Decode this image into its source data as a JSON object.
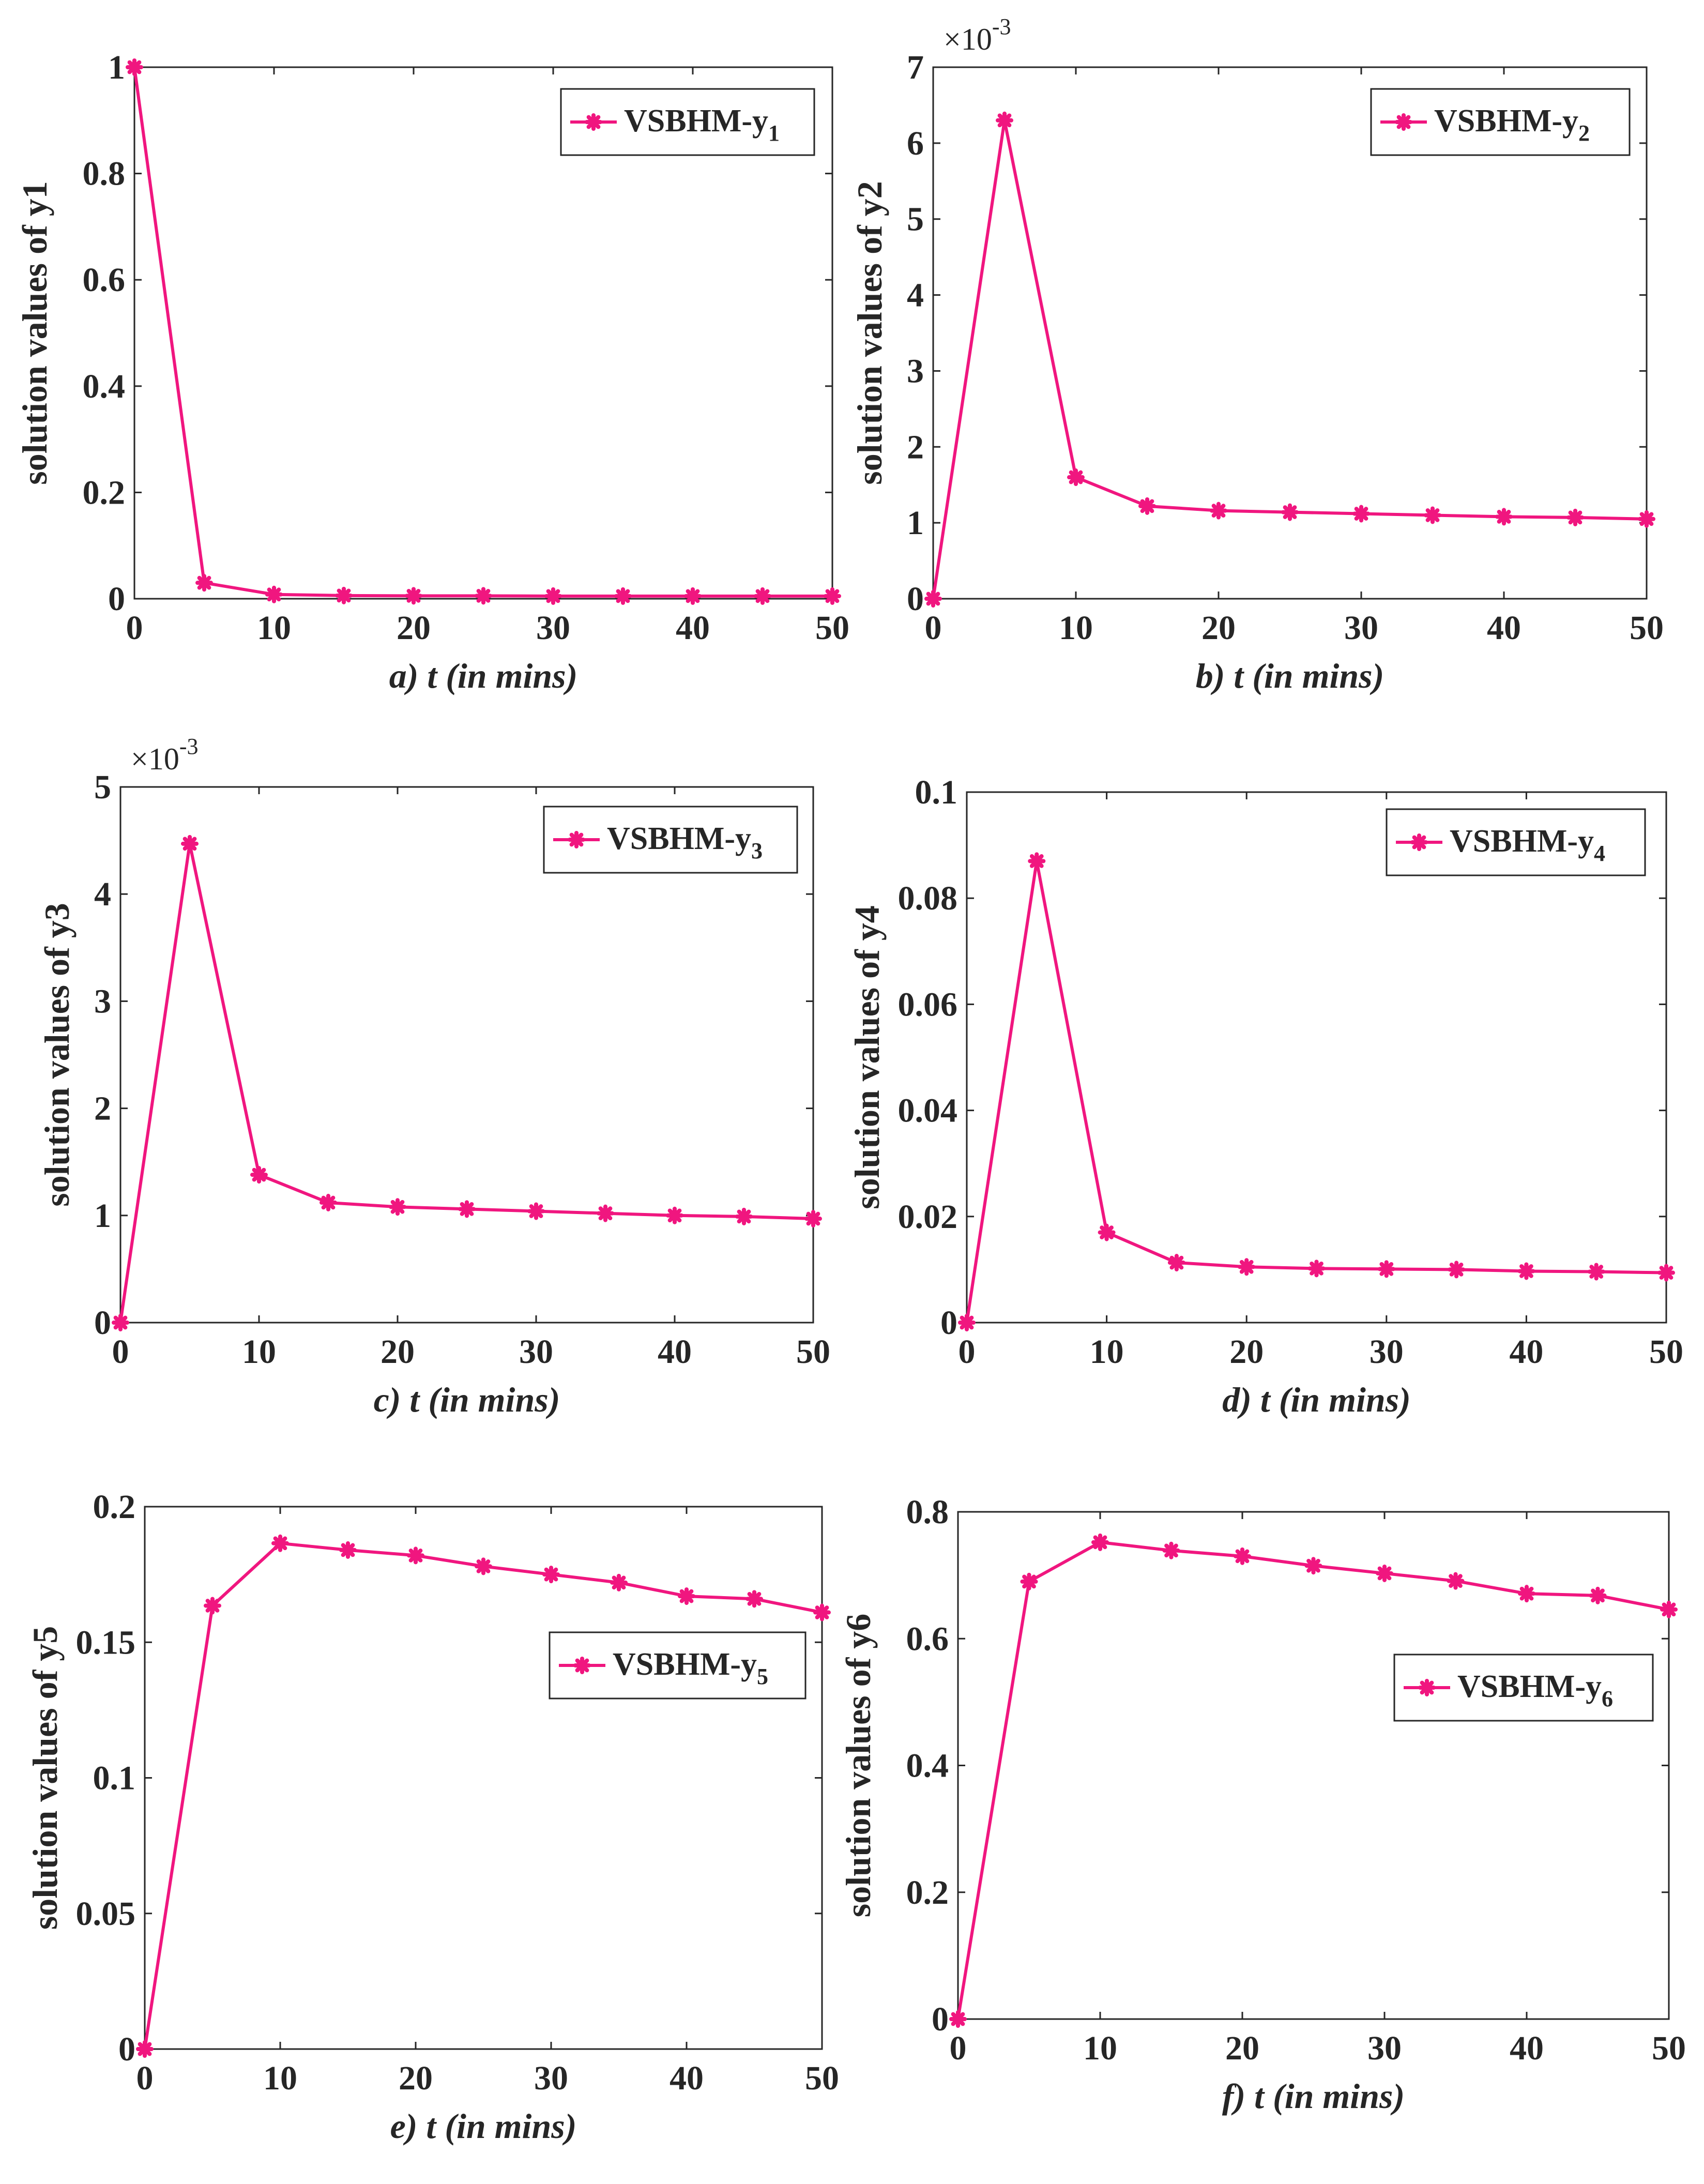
{
  "figure": {
    "series_color": "#f0167f",
    "axis_color": "#262626"
  },
  "chart_data": [
    {
      "type": "line",
      "panel": "a",
      "xlabel": "a) t (in mins)",
      "ylabel": "solution values of y1",
      "x": [
        0,
        5,
        10,
        15,
        20,
        25,
        30,
        35,
        40,
        45,
        50
      ],
      "series": [
        {
          "name": "VSBHM-y1",
          "legend_base": "VSBHM-y",
          "legend_sub": "1",
          "values": [
            1.0,
            0.03,
            0.008,
            0.006,
            0.0055,
            0.0055,
            0.005,
            0.005,
            0.005,
            0.005,
            0.005
          ]
        }
      ],
      "xlim": [
        0,
        50
      ],
      "ylim": [
        0,
        1
      ],
      "xticks": [
        0,
        10,
        20,
        30,
        40,
        50
      ],
      "yticks": [
        0,
        0.2,
        0.4,
        0.6,
        0.8,
        1
      ],
      "ytick_labels": [
        "0",
        "0.2",
        "0.4",
        "0.6",
        "0.8",
        "1"
      ],
      "exponent": null,
      "legend_position": "top-right"
    },
    {
      "type": "line",
      "panel": "b",
      "xlabel": "b) t (in mins)",
      "ylabel": "solution values of y2",
      "x": [
        0,
        5,
        10,
        15,
        20,
        25,
        30,
        35,
        40,
        45,
        50
      ],
      "series": [
        {
          "name": "VSBHM-y2",
          "legend_base": "VSBHM-y",
          "legend_sub": "2",
          "values": [
            0.0,
            0.0063,
            0.0016,
            0.00122,
            0.00116,
            0.00114,
            0.00112,
            0.0011,
            0.00108,
            0.00107,
            0.00105
          ]
        }
      ],
      "xlim": [
        0,
        50
      ],
      "ylim": [
        0,
        0.007
      ],
      "xticks": [
        0,
        10,
        20,
        30,
        40,
        50
      ],
      "yticks": [
        0,
        0.001,
        0.002,
        0.003,
        0.004,
        0.005,
        0.006,
        0.007
      ],
      "ytick_labels": [
        "0",
        "1",
        "2",
        "3",
        "4",
        "5",
        "6",
        "7"
      ],
      "exponent": {
        "base": "×10",
        "power": "-3"
      },
      "legend_position": "top-right"
    },
    {
      "type": "line",
      "panel": "c",
      "xlabel": "c) t (in mins)",
      "ylabel": "solution values of y3",
      "x": [
        0,
        5,
        10,
        15,
        20,
        25,
        30,
        35,
        40,
        45,
        50
      ],
      "series": [
        {
          "name": "VSBHM-y3",
          "legend_base": "VSBHM-y",
          "legend_sub": "3",
          "values": [
            0.0,
            0.00447,
            0.00138,
            0.00112,
            0.00108,
            0.00106,
            0.00104,
            0.00102,
            0.001,
            0.00099,
            0.00097
          ]
        }
      ],
      "xlim": [
        0,
        50
      ],
      "ylim": [
        0,
        0.005
      ],
      "xticks": [
        0,
        10,
        20,
        30,
        40,
        50
      ],
      "yticks": [
        0,
        0.001,
        0.002,
        0.003,
        0.004,
        0.005
      ],
      "ytick_labels": [
        "0",
        "1",
        "2",
        "3",
        "4",
        "5"
      ],
      "exponent": {
        "base": "×10",
        "power": "-3"
      },
      "legend_position": "top-right"
    },
    {
      "type": "line",
      "panel": "d",
      "xlabel": "d) t (in mins)",
      "ylabel": "solution values of y4",
      "x": [
        0,
        5,
        10,
        15,
        20,
        25,
        30,
        35,
        40,
        45,
        50
      ],
      "series": [
        {
          "name": "VSBHM-y4",
          "legend_base": "VSBHM-y",
          "legend_sub": "4",
          "values": [
            0.0,
            0.087,
            0.017,
            0.0113,
            0.0105,
            0.0102,
            0.0101,
            0.01,
            0.0097,
            0.0096,
            0.0094
          ]
        }
      ],
      "xlim": [
        0,
        50
      ],
      "ylim": [
        0,
        0.1
      ],
      "xticks": [
        0,
        10,
        20,
        30,
        40,
        50
      ],
      "yticks": [
        0,
        0.02,
        0.04,
        0.06,
        0.08,
        0.1
      ],
      "ytick_labels": [
        "0",
        "0.02",
        "0.04",
        "0.06",
        "0.08",
        "0.1"
      ],
      "exponent": null,
      "legend_position": "top-right"
    },
    {
      "type": "line",
      "panel": "e",
      "xlabel": "e) t (in mins)",
      "ylabel": "solution values of y5",
      "x": [
        0,
        5,
        10,
        15,
        20,
        25,
        30,
        35,
        40,
        45,
        50
      ],
      "series": [
        {
          "name": "VSBHM-y5",
          "legend_base": "VSBHM-y",
          "legend_sub": "5",
          "values": [
            0.0,
            0.1635,
            0.1865,
            0.184,
            0.182,
            0.178,
            0.175,
            0.172,
            0.167,
            0.166,
            0.161
          ]
        }
      ],
      "xlim": [
        0,
        50
      ],
      "ylim": [
        0,
        0.2
      ],
      "xticks": [
        0,
        10,
        20,
        30,
        40,
        50
      ],
      "yticks": [
        0,
        0.05,
        0.1,
        0.15,
        0.2
      ],
      "ytick_labels": [
        "0",
        "0.05",
        "0.1",
        "0.15",
        "0.2"
      ],
      "exponent": null,
      "legend_position": "upper-right"
    },
    {
      "type": "line",
      "panel": "f",
      "xlabel": "f) t (in mins)",
      "ylabel": "solution values of y6",
      "x": [
        0,
        5,
        10,
        15,
        20,
        25,
        30,
        35,
        40,
        45,
        50
      ],
      "series": [
        {
          "name": "VSBHM-y6",
          "legend_base": "VSBHM-y",
          "legend_sub": "6",
          "values": [
            0.0,
            0.69,
            0.752,
            0.739,
            0.73,
            0.715,
            0.703,
            0.691,
            0.671,
            0.668,
            0.646
          ]
        }
      ],
      "xlim": [
        0,
        50
      ],
      "ylim": [
        0,
        0.8
      ],
      "xticks": [
        0,
        10,
        20,
        30,
        40,
        50
      ],
      "yticks": [
        0,
        0.2,
        0.4,
        0.6,
        0.8
      ],
      "ytick_labels": [
        "0",
        "0.2",
        "0.4",
        "0.6",
        "0.8"
      ],
      "exponent": null,
      "legend_position": "upper-right"
    }
  ]
}
